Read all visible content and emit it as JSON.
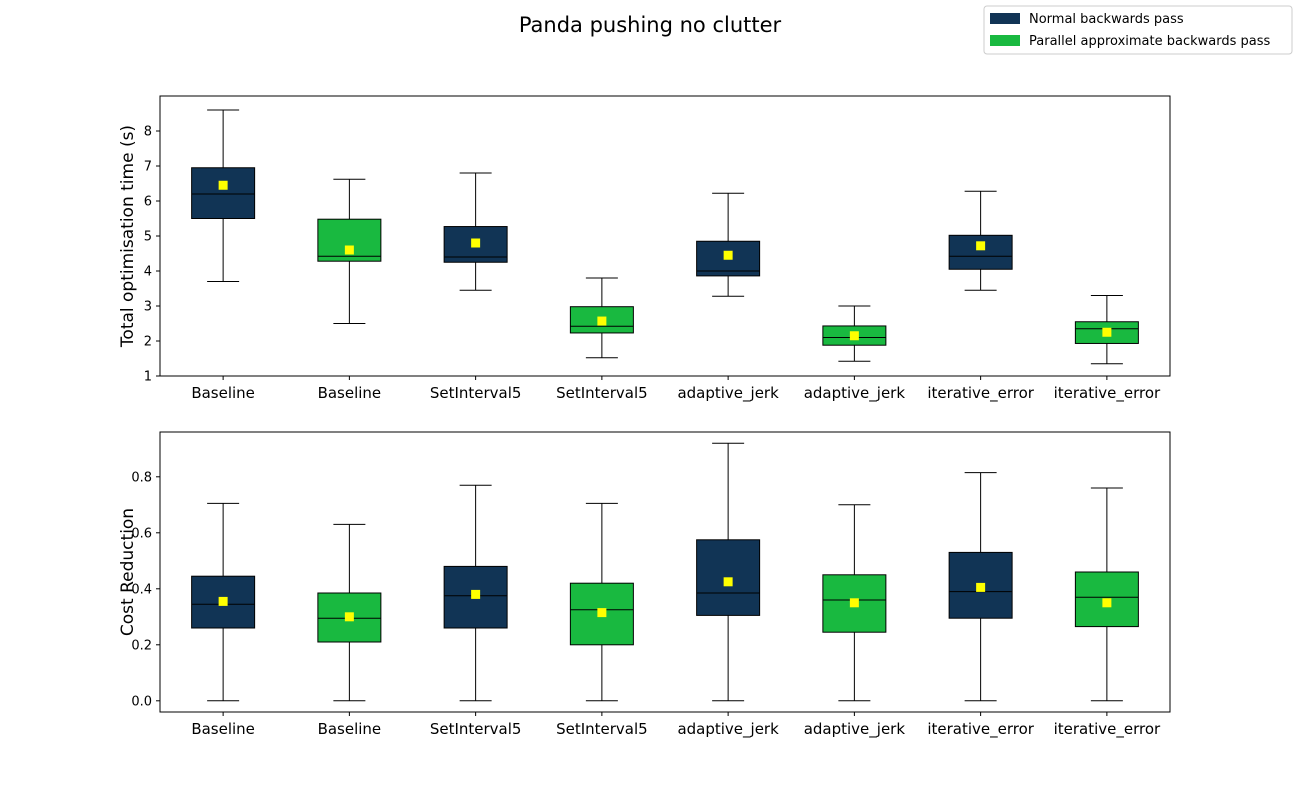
{
  "figure": {
    "title": "Panda pushing no clutter"
  },
  "legend": {
    "placement": "top-right",
    "entries": [
      {
        "label": "Normal backwards pass",
        "color": "#113455"
      },
      {
        "label": "Parallel approximate backwards pass",
        "color": "#19b940"
      }
    ]
  },
  "colors": {
    "normal": "#113455",
    "parallel": "#19b940",
    "mean_marker": "#ffff00"
  },
  "chart_data": [
    {
      "type": "box",
      "ylabel": "Total optimisation time (s)",
      "ylim": [
        1,
        9
      ],
      "yticks": [
        1,
        2,
        3,
        4,
        5,
        6,
        7,
        8
      ],
      "categories": [
        "Baseline",
        "Baseline",
        "SetInterval5",
        "SetInterval5",
        "adaptive_jerk",
        "adaptive_jerk",
        "iterative_error",
        "iterative_error"
      ],
      "groups": [
        "normal",
        "parallel",
        "normal",
        "parallel",
        "normal",
        "parallel",
        "normal",
        "parallel"
      ],
      "boxes": [
        {
          "whislo": 3.7,
          "q1": 5.5,
          "med": 6.2,
          "q3": 6.95,
          "whishi": 8.6,
          "mean": 6.45
        },
        {
          "whislo": 2.5,
          "q1": 4.28,
          "med": 4.42,
          "q3": 5.48,
          "whishi": 6.62,
          "mean": 4.6
        },
        {
          "whislo": 3.45,
          "q1": 4.25,
          "med": 4.4,
          "q3": 5.27,
          "whishi": 6.8,
          "mean": 4.8
        },
        {
          "whislo": 1.52,
          "q1": 2.23,
          "med": 2.42,
          "q3": 2.98,
          "whishi": 3.8,
          "mean": 2.57
        },
        {
          "whislo": 3.28,
          "q1": 3.86,
          "med": 4.0,
          "q3": 4.85,
          "whishi": 6.22,
          "mean": 4.45
        },
        {
          "whislo": 1.42,
          "q1": 1.88,
          "med": 2.1,
          "q3": 2.43,
          "whishi": 3.0,
          "mean": 2.15
        },
        {
          "whislo": 3.45,
          "q1": 4.05,
          "med": 4.42,
          "q3": 5.02,
          "whishi": 6.28,
          "mean": 4.72
        },
        {
          "whislo": 1.35,
          "q1": 1.93,
          "med": 2.35,
          "q3": 2.55,
          "whishi": 3.3,
          "mean": 2.25
        }
      ]
    },
    {
      "type": "box",
      "ylabel": "Cost Reduction",
      "ylim": [
        -0.04,
        0.96
      ],
      "yticks": [
        0.0,
        0.2,
        0.4,
        0.6,
        0.8
      ],
      "ytick_labels": [
        "0.0",
        "0.2",
        "0.4",
        "0.6",
        "0.8"
      ],
      "categories": [
        "Baseline",
        "Baseline",
        "SetInterval5",
        "SetInterval5",
        "adaptive_jerk",
        "adaptive_jerk",
        "iterative_error",
        "iterative_error"
      ],
      "groups": [
        "normal",
        "parallel",
        "normal",
        "parallel",
        "normal",
        "parallel",
        "normal",
        "parallel"
      ],
      "boxes": [
        {
          "whislo": 0.0,
          "q1": 0.26,
          "med": 0.345,
          "q3": 0.445,
          "whishi": 0.705,
          "mean": 0.355
        },
        {
          "whislo": 0.0,
          "q1": 0.21,
          "med": 0.295,
          "q3": 0.385,
          "whishi": 0.63,
          "mean": 0.3
        },
        {
          "whislo": 0.0,
          "q1": 0.26,
          "med": 0.375,
          "q3": 0.48,
          "whishi": 0.77,
          "mean": 0.38
        },
        {
          "whislo": 0.0,
          "q1": 0.2,
          "med": 0.325,
          "q3": 0.42,
          "whishi": 0.705,
          "mean": 0.315
        },
        {
          "whislo": 0.0,
          "q1": 0.305,
          "med": 0.385,
          "q3": 0.575,
          "whishi": 0.92,
          "mean": 0.425
        },
        {
          "whislo": 0.0,
          "q1": 0.245,
          "med": 0.36,
          "q3": 0.45,
          "whishi": 0.7,
          "mean": 0.35
        },
        {
          "whislo": 0.0,
          "q1": 0.295,
          "med": 0.39,
          "q3": 0.53,
          "whishi": 0.815,
          "mean": 0.405
        },
        {
          "whislo": 0.0,
          "q1": 0.265,
          "med": 0.37,
          "q3": 0.46,
          "whishi": 0.76,
          "mean": 0.35
        }
      ]
    }
  ]
}
